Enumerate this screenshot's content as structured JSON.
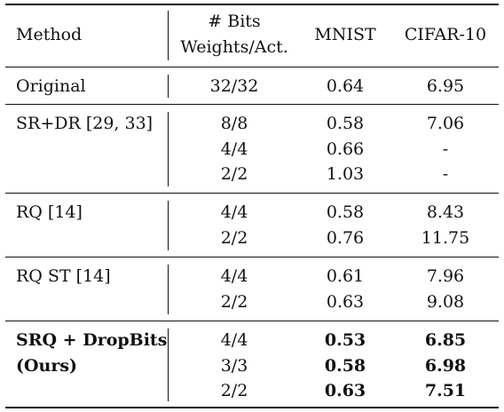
{
  "header": {
    "method": "Method",
    "bits_line1": "# Bits",
    "bits_line2": "Weights/Act.",
    "mnist": "MNIST",
    "cifar": "CIFAR-10"
  },
  "groups": [
    {
      "method": [
        "Original"
      ],
      "rows": [
        {
          "bits": "32/32",
          "mnist": "0.64",
          "cifar": "6.95"
        }
      ]
    },
    {
      "method": [
        "SR+DR [29, 33]"
      ],
      "rows": [
        {
          "bits": "8/8",
          "mnist": "0.58",
          "cifar": "7.06"
        },
        {
          "bits": "4/4",
          "mnist": "0.66",
          "cifar": "-"
        },
        {
          "bits": "2/2",
          "mnist": "1.03",
          "cifar": "-"
        }
      ]
    },
    {
      "method": [
        "RQ [14]"
      ],
      "rows": [
        {
          "bits": "4/4",
          "mnist": "0.58",
          "cifar": "8.43"
        },
        {
          "bits": "2/2",
          "mnist": "0.76",
          "cifar": "11.75"
        }
      ]
    },
    {
      "method": [
        "RQ ST [14]"
      ],
      "rows": [
        {
          "bits": "4/4",
          "mnist": "0.61",
          "cifar": "7.96"
        },
        {
          "bits": "2/2",
          "mnist": "0.63",
          "cifar": "9.08"
        }
      ]
    },
    {
      "method": [
        "SRQ + DropBits",
        "(Ours)"
      ],
      "rows": [
        {
          "bits": "4/4",
          "mnist": "0.53",
          "cifar": "6.85"
        },
        {
          "bits": "3/3",
          "mnist": "0.58",
          "cifar": "6.98"
        },
        {
          "bits": "2/2",
          "mnist": "0.63",
          "cifar": "7.51"
        }
      ]
    }
  ]
}
